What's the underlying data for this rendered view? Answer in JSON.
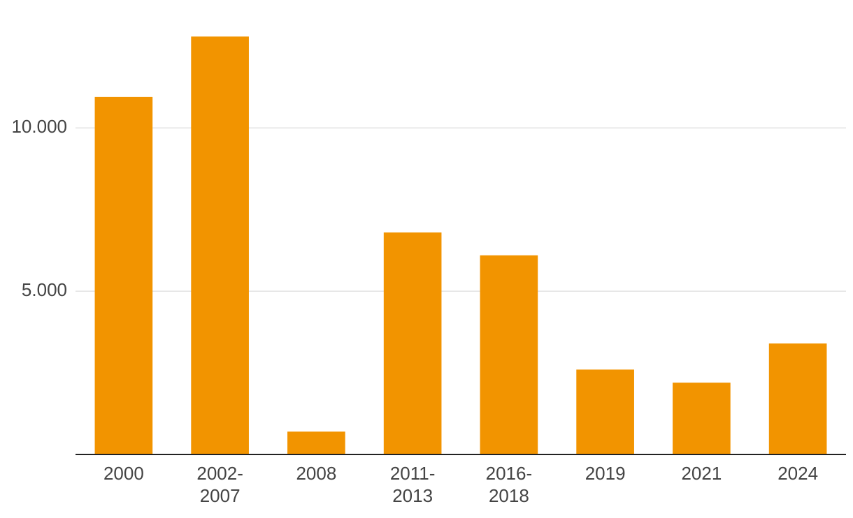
{
  "chart_data": {
    "type": "bar",
    "categories": [
      "2000",
      "2002-2007",
      "2008",
      "2011-2013",
      "2016-2018",
      "2019",
      "2021",
      "2024"
    ],
    "values": [
      10950,
      12800,
      700,
      6800,
      6100,
      2600,
      2200,
      3400
    ],
    "color": "#f29400",
    "ylim": [
      0,
      13000
    ],
    "yticks": [
      {
        "value": 5000,
        "label": "5.000"
      },
      {
        "value": 10000,
        "label": "10.000"
      }
    ],
    "grid": true
  }
}
